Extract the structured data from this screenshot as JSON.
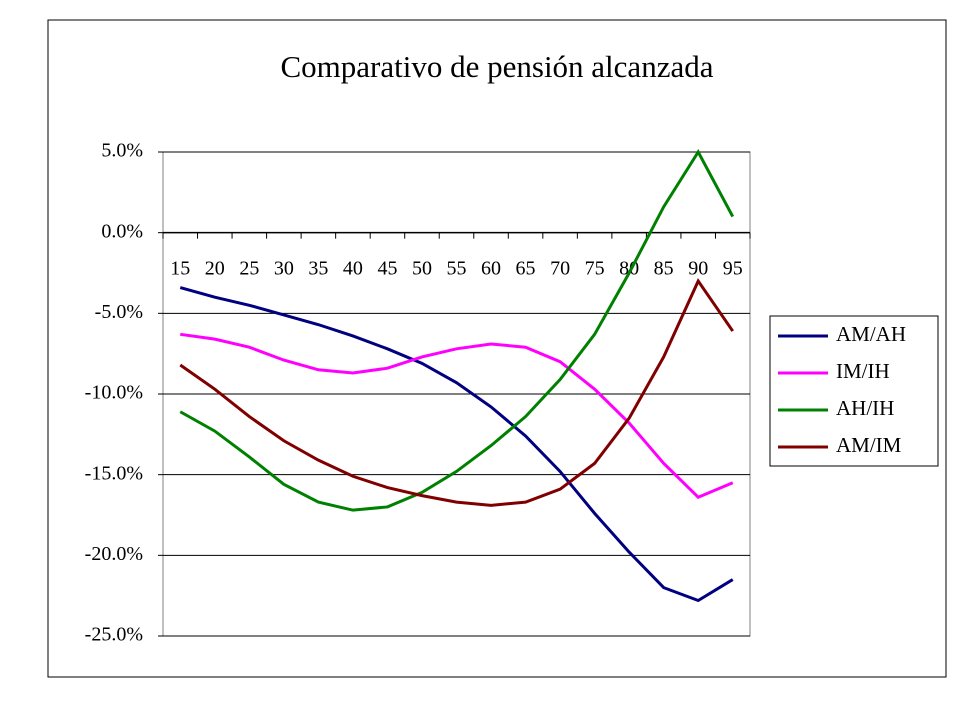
{
  "chart_data": {
    "type": "line",
    "title": "Comparativo de pensión alcanzada",
    "categories": [
      "15",
      "20",
      "25",
      "30",
      "35",
      "40",
      "45",
      "50",
      "55",
      "60",
      "65",
      "70",
      "75",
      "80",
      "85",
      "90",
      "95"
    ],
    "series": [
      {
        "name": "AM/AH",
        "color": "#000080",
        "values": [
          -3.4,
          -4.0,
          -4.5,
          -5.1,
          -5.7,
          -6.4,
          -7.2,
          -8.1,
          -9.3,
          -10.8,
          -12.6,
          -14.8,
          -17.4,
          -19.8,
          -22.0,
          -22.8,
          -21.5
        ]
      },
      {
        "name": "IM/IH",
        "color": "#ff00ff",
        "values": [
          -6.3,
          -6.6,
          -7.1,
          -7.9,
          -8.5,
          -8.7,
          -8.4,
          -7.7,
          -7.2,
          -6.9,
          -7.1,
          -8.0,
          -9.7,
          -11.8,
          -14.3,
          -16.4,
          -15.5
        ]
      },
      {
        "name": "AH/IH",
        "color": "#008000",
        "values": [
          -11.1,
          -12.3,
          -13.9,
          -15.6,
          -16.7,
          -17.2,
          -17.0,
          -16.1,
          -14.8,
          -13.2,
          -11.4,
          -9.1,
          -6.3,
          -2.5,
          1.6,
          5.0,
          1.0
        ]
      },
      {
        "name": "AM/IM",
        "color": "#800000",
        "values": [
          -8.2,
          -9.7,
          -11.4,
          -12.9,
          -14.1,
          -15.1,
          -15.8,
          -16.3,
          -16.7,
          -16.9,
          -16.7,
          -15.9,
          -14.3,
          -11.5,
          -7.7,
          -3.0,
          -6.1
        ]
      }
    ],
    "ylim": [
      -25,
      5
    ],
    "yticks": [
      {
        "value": 5,
        "label": "5.0%"
      },
      {
        "value": 0,
        "label": "0.0%"
      },
      {
        "value": -5,
        "label": "-5.0%"
      },
      {
        "value": -10,
        "label": "-10.0%"
      },
      {
        "value": -15,
        "label": "-15.0%"
      },
      {
        "value": -20,
        "label": "-20.0%"
      },
      {
        "value": -25,
        "label": "-25.0%"
      }
    ],
    "grid": true,
    "legend": "right"
  }
}
